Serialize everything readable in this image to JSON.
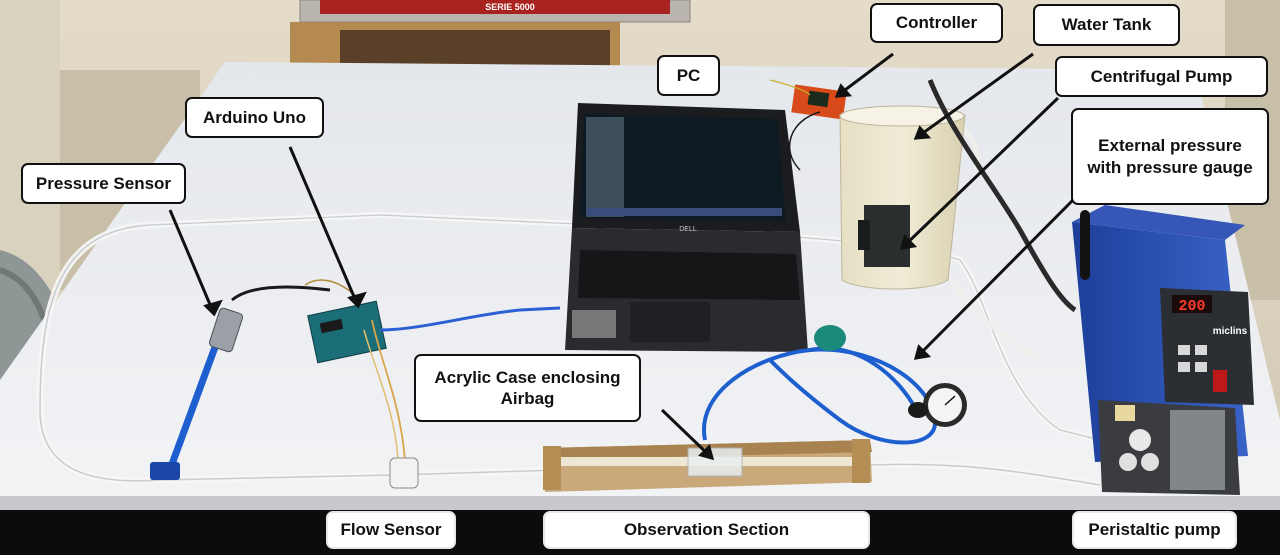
{
  "labels": {
    "controller": "Controller",
    "water_tank": "Water Tank",
    "centrifugal_pump": "Centrifugal Pump",
    "pc": "PC",
    "arduino_uno": "Arduino Uno",
    "pressure_sensor": "Pressure Sensor",
    "external_pressure": "External pressure with pressure gauge",
    "acrylic_case": "Acrylic Case enclosing Airbag",
    "flow_sensor": "Flow Sensor",
    "observation_section": "Observation Section",
    "peristaltic_pump": "Peristaltic pump"
  },
  "photo_text": {
    "oven_series": "SERIE 5000",
    "laptop_brand": "DELL",
    "pump_display": "200",
    "pump_brand": "miclins"
  },
  "colors": {
    "table_surface": "#ebeef2",
    "label_border": "#111111",
    "pump_body": "#2a4fb0",
    "tubing_blue": "#1e5fd0",
    "water": "#e9e2bf"
  }
}
